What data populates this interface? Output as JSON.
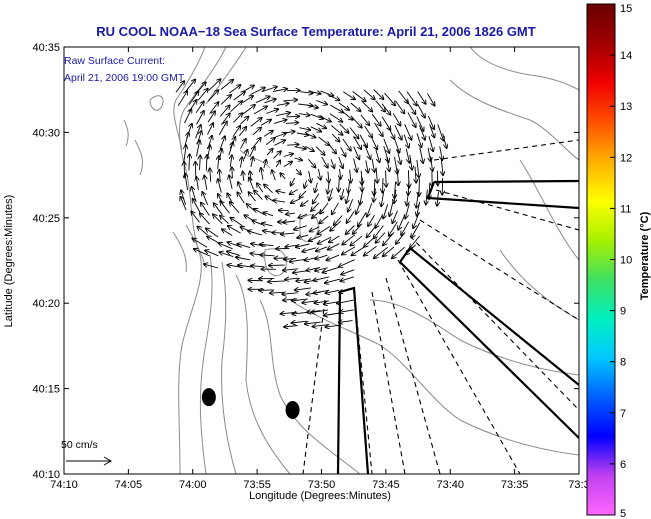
{
  "chart_data": {
    "type": "quiver-map",
    "title": "RU COOL  NOAA−18  Sea Surface Temperature:  April 21, 2006 1826 GMT",
    "xlabel": "Longitude (Degrees:Minutes)",
    "ylabel": "Latitude (Degrees:Minutes)",
    "x_ticks": [
      "74:10",
      "74:05",
      "74:00",
      "73:55",
      "73:50",
      "73:45",
      "73:40",
      "73:35",
      "73:3"
    ],
    "y_ticks": [
      "40:35",
      "40:30",
      "40:25",
      "40:20",
      "40:15",
      "40:10"
    ],
    "xlim": [
      -74.1667,
      -73.5
    ],
    "ylim": [
      40.1667,
      40.5833
    ],
    "annotation_line1": "Raw Surface Current:",
    "annotation_line2": "April 21, 2006 19:00 GMT",
    "scale_label": "50 cm/s",
    "colorbar": {
      "label": "Temperature (°C)",
      "min": 5,
      "max": 15,
      "ticks": [
        "15",
        "14",
        "13",
        "12",
        "11",
        "10",
        "9",
        "8",
        "7",
        "6",
        "5"
      ],
      "colors": [
        "#ff66ff",
        "#c040f0",
        "#0000ff",
        "#0060ff",
        "#00c8ff",
        "#00f0c0",
        "#40e060",
        "#a8f000",
        "#ffff00",
        "#ffb000",
        "#ff5000",
        "#f00000",
        "#a00000",
        "#6a0000"
      ]
    },
    "gyre_center": {
      "lon": -73.875,
      "lat": 40.4583
    },
    "markers": [
      {
        "lon": -73.9792,
        "lat": 40.2417
      },
      {
        "lon": -73.8708,
        "lat": 40.2292
      }
    ]
  }
}
